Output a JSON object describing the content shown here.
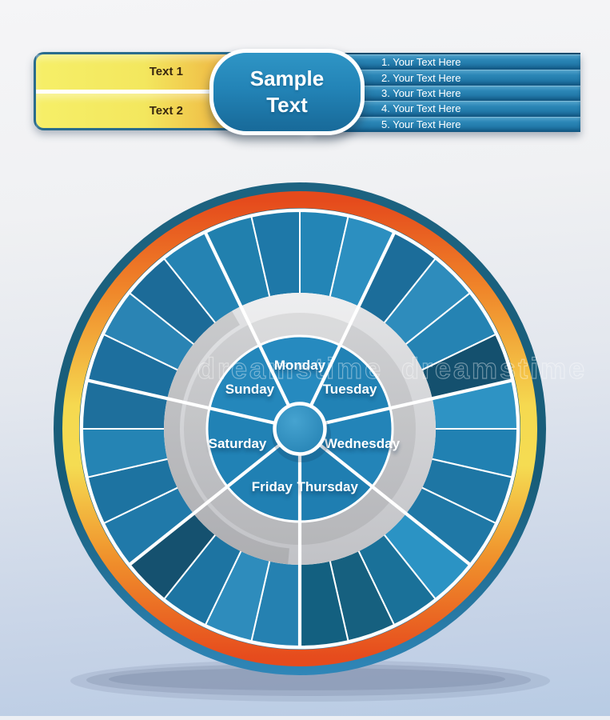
{
  "banner": {
    "left_labels": [
      "Text 1",
      "Text 2"
    ],
    "center": [
      "Sample",
      "Text"
    ],
    "stripes": [
      "1. Your Text Here",
      "2. Your Text Here",
      "3. Your Text Here",
      "4. Your Text Here",
      "5. Your Text Here"
    ]
  },
  "wheel": {
    "days": [
      "Monday",
      "Tuesday",
      "Wednesday",
      "Thursday",
      "Friday",
      "Saturday",
      "Sunday"
    ],
    "segments_per_day": 4,
    "segment_colors": [
      "#2180ae",
      "#1e78a8",
      "#2385b6",
      "#2c8fc0",
      "#1c6d9a",
      "#2e8cbc",
      "#2583b3",
      "#14506e",
      "#2e93c4",
      "#2181b2",
      "#1e76a4",
      "#1f78a6",
      "#2b93c4",
      "#1a7199",
      "#16607f",
      "#136080",
      "#2581b1",
      "#2e8cbc",
      "#1d74a2",
      "#15516f",
      "#2079a9",
      "#1d73a1",
      "#2584b4",
      "#1e6f9c",
      "#1d6f9e",
      "#2a84b4",
      "#1c6b98",
      "#2583b3"
    ],
    "disk_colors": [
      "#268abf",
      "#2182b5",
      "#2384b8",
      "#1f7eb1",
      "#2080b3",
      "#2182b5",
      "#2487bb"
    ],
    "colors": {
      "ring_red": "#e54a1c",
      "ring_orange": "#f0872a",
      "ring_yellow": "#f5dc52",
      "outer_stroke": "#1d6381",
      "gray_ring": "#cfd0d4",
      "hub": "#2587ba",
      "label": "#ffffff"
    }
  },
  "watermark": {
    "text": "dreamstime"
  }
}
